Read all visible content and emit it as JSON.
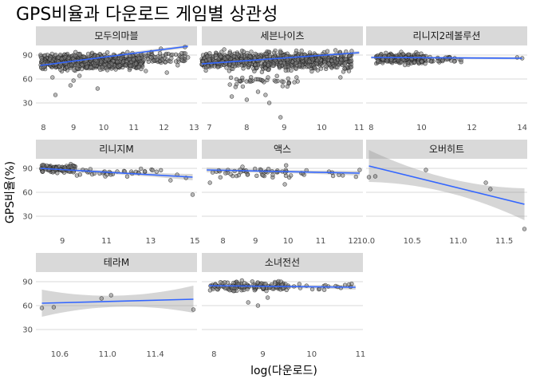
{
  "chart_data": {
    "type": "scatter",
    "title": "GPS비율과 다운로드 게임별 상관성",
    "xlabel": "log(다운로드)",
    "ylabel": "GPS비율(%)",
    "y_ticks": [
      30,
      60,
      90
    ],
    "y_range": [
      10,
      102
    ],
    "grid": true,
    "colors": {
      "strip": "#d9d9d9",
      "grid": "#d9d9d9",
      "point_fill": "#808080",
      "point_stroke": "#1a1a1a",
      "trend": "#3366ff",
      "band": "#999999"
    },
    "panels": [
      {
        "name": "모두의마블",
        "x_range": [
          7.75,
          13.1
        ],
        "x_ticks": [
          8,
          9,
          10,
          11,
          12,
          13
        ],
        "trend": [
          [
            7.9,
            77
          ],
          [
            12.8,
            101
          ]
        ],
        "band": [
          2,
          2
        ],
        "cloud": [
          {
            "x": [
              7.9,
              11.3
            ],
            "y": [
              68,
              96
            ],
            "n": 700
          },
          {
            "x": [
              11.3,
              12.8
            ],
            "y": [
              75,
              99
            ],
            "n": 60
          }
        ],
        "points": [
          [
            8.4,
            40
          ],
          [
            8.9,
            52
          ],
          [
            9.8,
            48
          ],
          [
            9.0,
            58
          ],
          [
            8.3,
            62
          ],
          [
            10.4,
            72
          ],
          [
            11.4,
            70
          ],
          [
            12.1,
            68
          ],
          [
            12.4,
            82
          ],
          [
            12.8,
            87
          ],
          [
            12.7,
            100
          ],
          [
            11.9,
            98
          ],
          [
            10.1,
            85
          ],
          [
            9.2,
            64
          ]
        ]
      },
      {
        "name": "세븐나이츠",
        "x_range": [
          6.8,
          11.1
        ],
        "x_ticks": [
          7,
          8,
          9,
          10,
          11
        ],
        "trend": [
          [
            6.8,
            79
          ],
          [
            11.0,
            93
          ]
        ],
        "band": [
          2,
          2
        ],
        "cloud": [
          {
            "x": [
              6.8,
              10.8
            ],
            "y": [
              68,
              98
            ],
            "n": 750
          },
          {
            "x": [
              7.5,
              9.5
            ],
            "y": [
              48,
              68
            ],
            "n": 40
          }
        ],
        "points": [
          [
            8.6,
            30
          ],
          [
            8.0,
            34
          ],
          [
            7.6,
            38
          ],
          [
            8.3,
            44
          ],
          [
            8.9,
            12
          ],
          [
            10.5,
            62
          ],
          [
            10.8,
            95
          ],
          [
            8.5,
            40
          ],
          [
            7.7,
            50
          ]
        ]
      },
      {
        "name": "리니지2레볼루션",
        "x_range": [
          7.8,
          14.2
        ],
        "x_ticks": [
          8,
          10,
          12,
          14
        ],
        "trend": [
          [
            8.0,
            87
          ],
          [
            14.0,
            86
          ]
        ],
        "band": [
          1.5,
          1.5
        ],
        "cloud": [
          {
            "x": [
              8.2,
              10.2
            ],
            "y": [
              76,
              95
            ],
            "n": 220
          },
          {
            "x": [
              10.2,
              11.6
            ],
            "y": [
              78,
              90
            ],
            "n": 30
          }
        ],
        "points": [
          [
            13.8,
            87
          ],
          [
            14.0,
            86
          ],
          [
            11.3,
            82
          ]
        ]
      },
      {
        "name": "리니지M",
        "x_range": [
          7.8,
          15.1
        ],
        "x_ticks": [
          9,
          11,
          13,
          15
        ],
        "trend": [
          [
            8.0,
            90
          ],
          [
            14.9,
            79
          ]
        ],
        "band": [
          2,
          4
        ],
        "cloud": [
          {
            "x": [
              8.0,
              9.6
            ],
            "y": [
              83,
              96
            ],
            "n": 110
          },
          {
            "x": [
              9.6,
              13.5
            ],
            "y": [
              78,
              92
            ],
            "n": 35
          }
        ],
        "points": [
          [
            13.9,
            75
          ],
          [
            14.9,
            57
          ],
          [
            14.6,
            78
          ],
          [
            14.2,
            82
          ]
        ]
      },
      {
        "name": "액스",
        "x_range": [
          7.35,
          12.3
        ],
        "x_ticks": [
          8,
          9,
          10,
          11,
          12
        ],
        "trend": [
          [
            7.5,
            88
          ],
          [
            12.2,
            84
          ]
        ],
        "band": [
          2,
          3
        ],
        "cloud": [
          {
            "x": [
              7.6,
              10.0
            ],
            "y": [
              74,
              96
            ],
            "n": 45
          },
          {
            "x": [
              10.0,
              12.2
            ],
            "y": [
              76,
              90
            ],
            "n": 12
          }
        ],
        "points": [
          [
            7.6,
            72
          ],
          [
            9.9,
            70
          ],
          [
            12.2,
            88
          ],
          [
            8.6,
            92
          ]
        ]
      },
      {
        "name": "오버히트",
        "x_range": [
          10.0,
          11.75
        ],
        "x_ticks": [
          10.0,
          10.5,
          11.0,
          11.5
        ],
        "trend": [
          [
            10.03,
            93
          ],
          [
            11.72,
            45
          ]
        ],
        "band": [
          9,
          20
        ],
        "cloud": [],
        "points": [
          [
            10.03,
            79
          ],
          [
            10.1,
            80
          ],
          [
            10.65,
            88
          ],
          [
            11.3,
            72
          ],
          [
            11.35,
            64
          ],
          [
            11.72,
            14
          ]
        ]
      },
      {
        "name": "테라M",
        "x_range": [
          10.4,
          11.75
        ],
        "x_ticks": [
          10.6,
          11.0,
          11.4
        ],
        "trend": [
          [
            10.45,
            63
          ],
          [
            11.72,
            68
          ]
        ],
        "band": [
          7,
          17
        ],
        "cloud": [],
        "points": [
          [
            10.45,
            57
          ],
          [
            10.55,
            58
          ],
          [
            10.95,
            69
          ],
          [
            11.03,
            73
          ],
          [
            11.72,
            55
          ]
        ]
      },
      {
        "name": "소녀전선",
        "x_range": [
          7.75,
          11.05
        ],
        "x_ticks": [
          8,
          9,
          10,
          11
        ],
        "trend": [
          [
            7.9,
            85
          ],
          [
            10.9,
            83
          ]
        ],
        "band": [
          2,
          3
        ],
        "cloud": [
          {
            "x": [
              7.9,
              9.5
            ],
            "y": [
              74,
              94
            ],
            "n": 140
          },
          {
            "x": [
              9.5,
              10.9
            ],
            "y": [
              78,
              90
            ],
            "n": 20
          }
        ],
        "points": [
          [
            8.9,
            60
          ],
          [
            8.7,
            64
          ],
          [
            9.1,
            70
          ]
        ]
      }
    ]
  }
}
